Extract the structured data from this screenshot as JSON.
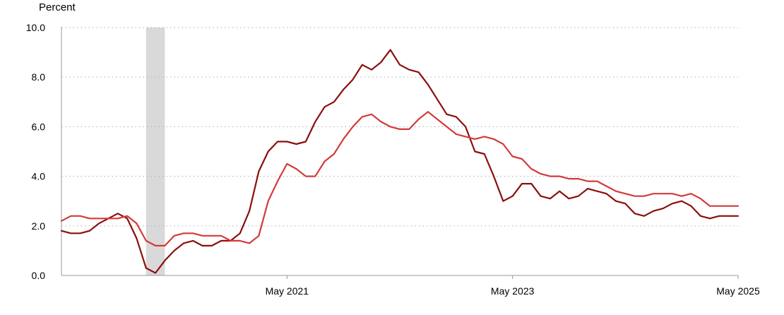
{
  "chart_data": {
    "type": "line",
    "title": "",
    "xlabel": "",
    "ylabel": "Percent",
    "ylim": [
      0,
      10
    ],
    "yticks": [
      "0.0",
      "2.0",
      "4.0",
      "6.0",
      "8.0",
      "10.0"
    ],
    "ytick_values": [
      0,
      2,
      4,
      6,
      8,
      10
    ],
    "x_start": "May 2019",
    "x_end": "May 2025",
    "xticks": [
      {
        "label": "May 2021",
        "date": "2021-05"
      },
      {
        "label": "May 2023",
        "date": "2023-05"
      },
      {
        "label": "May 2025",
        "date": "2025-05"
      }
    ],
    "grid": "horizontal-dotted",
    "recession_shading": {
      "start": "2020-02",
      "end": "2020-04",
      "color": "#d9d9d9"
    },
    "x": [
      "2019-05",
      "2019-06",
      "2019-07",
      "2019-08",
      "2019-09",
      "2019-10",
      "2019-11",
      "2019-12",
      "2020-01",
      "2020-02",
      "2020-03",
      "2020-04",
      "2020-05",
      "2020-06",
      "2020-07",
      "2020-08",
      "2020-09",
      "2020-10",
      "2020-11",
      "2020-12",
      "2021-01",
      "2021-02",
      "2021-03",
      "2021-04",
      "2021-05",
      "2021-06",
      "2021-07",
      "2021-08",
      "2021-09",
      "2021-10",
      "2021-11",
      "2021-12",
      "2022-01",
      "2022-02",
      "2022-03",
      "2022-04",
      "2022-05",
      "2022-06",
      "2022-07",
      "2022-08",
      "2022-09",
      "2022-10",
      "2022-11",
      "2022-12",
      "2023-01",
      "2023-02",
      "2023-03",
      "2023-04",
      "2023-05",
      "2023-06",
      "2023-07",
      "2023-08",
      "2023-09",
      "2023-10",
      "2023-11",
      "2023-12",
      "2024-01",
      "2024-02",
      "2024-03",
      "2024-04",
      "2024-05",
      "2024-06",
      "2024-07",
      "2024-08",
      "2024-09",
      "2024-10",
      "2024-11",
      "2024-12",
      "2025-01",
      "2025-02",
      "2025-03",
      "2025-04",
      "2025-05"
    ],
    "series": [
      {
        "color": "#8b0e0e",
        "values": [
          1.8,
          1.7,
          1.7,
          1.8,
          2.1,
          2.3,
          2.5,
          2.3,
          1.5,
          0.3,
          0.1,
          0.6,
          1.0,
          1.3,
          1.4,
          1.2,
          1.2,
          1.4,
          1.4,
          1.7,
          2.6,
          4.2,
          5.0,
          5.4,
          5.4,
          5.3,
          5.4,
          6.2,
          6.8,
          7.0,
          7.5,
          7.9,
          8.5,
          8.3,
          8.6,
          9.1,
          8.5,
          8.3,
          8.2,
          7.7,
          7.1,
          6.5,
          6.4,
          6.0,
          5.0,
          4.9,
          4.0,
          3.0,
          3.2,
          3.7,
          3.7,
          3.2,
          3.1,
          3.4,
          3.1,
          3.2,
          3.5,
          3.4,
          3.3,
          3.0,
          2.9,
          2.5,
          2.4,
          2.6,
          2.7,
          2.9,
          3.0,
          2.8,
          2.4,
          2.3,
          2.4,
          2.4,
          2.4
        ]
      },
      {
        "color": "#d43a3a",
        "values": [
          2.2,
          2.4,
          2.4,
          2.3,
          2.3,
          2.3,
          2.3,
          2.4,
          2.1,
          1.4,
          1.2,
          1.2,
          1.6,
          1.7,
          1.7,
          1.6,
          1.6,
          1.6,
          1.4,
          1.4,
          1.3,
          1.6,
          3.0,
          3.8,
          4.5,
          4.3,
          4.0,
          4.0,
          4.6,
          4.9,
          5.5,
          6.0,
          6.4,
          6.5,
          6.2,
          6.0,
          5.9,
          5.9,
          6.3,
          6.6,
          6.3,
          6.0,
          5.7,
          5.6,
          5.5,
          5.6,
          5.5,
          5.3,
          4.8,
          4.7,
          4.3,
          4.1,
          4.0,
          4.0,
          3.9,
          3.9,
          3.8,
          3.8,
          3.6,
          3.4,
          3.3,
          3.2,
          3.2,
          3.3,
          3.3,
          3.3,
          3.2,
          3.3,
          3.1,
          2.8,
          2.8,
          2.8,
          2.8
        ]
      }
    ]
  }
}
